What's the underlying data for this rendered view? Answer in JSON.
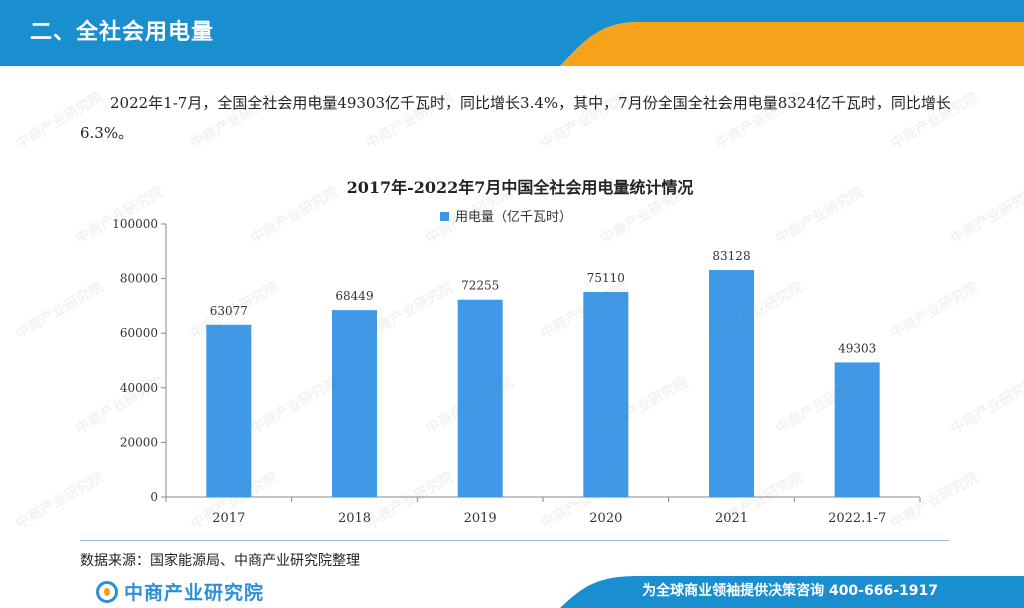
{
  "header": {
    "section_title": "二、全社会用电量"
  },
  "intro": {
    "text": "2022年1-7月，全国全社会用电量49303亿千瓦时，同比增长3.4%，其中，7月份全国全社会用电量8324亿千瓦时，同比增长6.3%。"
  },
  "chart_data": {
    "type": "bar",
    "title": "2017年-2022年7月中国全社会用电量统计情况",
    "categories": [
      "2017",
      "2018",
      "2019",
      "2020",
      "2021",
      "2022.1-7"
    ],
    "series": [
      {
        "name": "用电量（亿千瓦时）",
        "values": [
          63077,
          68449,
          72255,
          75110,
          83128,
          49303
        ]
      }
    ],
    "ylim": [
      0,
      100000
    ],
    "yticks": [
      0,
      20000,
      40000,
      60000,
      80000,
      100000
    ],
    "legend_position": "top",
    "grid": false,
    "colors": {
      "bar": "#3f99e6"
    }
  },
  "source": {
    "text": "数据来源：国家能源局、中商产业研究院整理"
  },
  "footer": {
    "logo_text": "中商产业研究院",
    "slogan": "为全球商业领袖提供决策咨询   400-666-1917"
  },
  "watermark": {
    "text": "中商产业研究院"
  },
  "colors": {
    "header_blue": "#1a8fd0",
    "accent_orange": "#f7a21b"
  }
}
